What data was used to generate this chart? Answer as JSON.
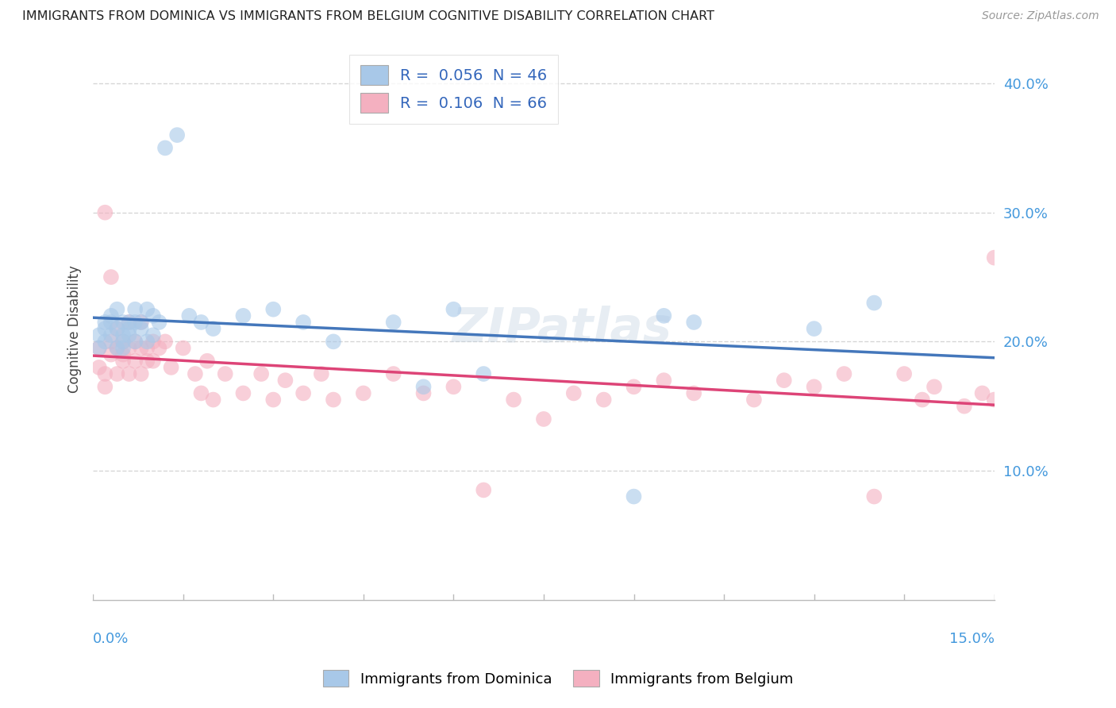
{
  "title": "IMMIGRANTS FROM DOMINICA VS IMMIGRANTS FROM BELGIUM COGNITIVE DISABILITY CORRELATION CHART",
  "source": "Source: ZipAtlas.com",
  "ylabel": "Cognitive Disability",
  "xlim": [
    0.0,
    0.15
  ],
  "ylim": [
    0.0,
    0.42
  ],
  "ytick_vals": [
    0.1,
    0.2,
    0.3,
    0.4
  ],
  "ytick_labels": [
    "10.0%",
    "20.0%",
    "30.0%",
    "40.0%"
  ],
  "r_dominica": 0.056,
  "n_dominica": 46,
  "r_belgium": 0.106,
  "n_belgium": 66,
  "color_dominica": "#a8c8e8",
  "color_belgium": "#f4b0c0",
  "line_color_dominica": "#4477bb",
  "line_color_belgium": "#dd4477",
  "background_color": "#ffffff",
  "grid_color": "#cccccc",
  "title_color": "#222222",
  "source_color": "#999999",
  "axis_label_color": "#4499dd",
  "dominica_x": [
    0.001,
    0.001,
    0.002,
    0.002,
    0.002,
    0.003,
    0.003,
    0.003,
    0.004,
    0.004,
    0.004,
    0.005,
    0.005,
    0.005,
    0.005,
    0.006,
    0.006,
    0.006,
    0.007,
    0.007,
    0.007,
    0.008,
    0.008,
    0.009,
    0.009,
    0.01,
    0.01,
    0.011,
    0.012,
    0.014,
    0.016,
    0.018,
    0.02,
    0.025,
    0.03,
    0.035,
    0.04,
    0.05,
    0.055,
    0.06,
    0.065,
    0.09,
    0.095,
    0.1,
    0.12,
    0.13
  ],
  "dominica_y": [
    0.195,
    0.205,
    0.2,
    0.21,
    0.215,
    0.205,
    0.215,
    0.22,
    0.195,
    0.21,
    0.225,
    0.2,
    0.215,
    0.205,
    0.195,
    0.205,
    0.215,
    0.21,
    0.2,
    0.215,
    0.225,
    0.215,
    0.21,
    0.2,
    0.225,
    0.22,
    0.205,
    0.215,
    0.35,
    0.36,
    0.22,
    0.215,
    0.21,
    0.22,
    0.225,
    0.215,
    0.2,
    0.215,
    0.165,
    0.225,
    0.175,
    0.08,
    0.22,
    0.215,
    0.21,
    0.23
  ],
  "belgium_x": [
    0.001,
    0.001,
    0.002,
    0.002,
    0.002,
    0.003,
    0.003,
    0.003,
    0.004,
    0.004,
    0.004,
    0.005,
    0.005,
    0.005,
    0.006,
    0.006,
    0.006,
    0.007,
    0.007,
    0.008,
    0.008,
    0.008,
    0.009,
    0.009,
    0.01,
    0.01,
    0.011,
    0.012,
    0.013,
    0.015,
    0.017,
    0.018,
    0.019,
    0.02,
    0.022,
    0.025,
    0.028,
    0.03,
    0.032,
    0.035,
    0.038,
    0.04,
    0.045,
    0.05,
    0.055,
    0.06,
    0.065,
    0.07,
    0.075,
    0.08,
    0.085,
    0.09,
    0.095,
    0.1,
    0.11,
    0.115,
    0.12,
    0.125,
    0.13,
    0.135,
    0.138,
    0.14,
    0.145,
    0.148,
    0.15,
    0.15
  ],
  "belgium_y": [
    0.18,
    0.195,
    0.3,
    0.175,
    0.165,
    0.2,
    0.25,
    0.19,
    0.21,
    0.195,
    0.175,
    0.185,
    0.2,
    0.19,
    0.215,
    0.175,
    0.195,
    0.185,
    0.2,
    0.175,
    0.195,
    0.215,
    0.185,
    0.195,
    0.2,
    0.185,
    0.195,
    0.2,
    0.18,
    0.195,
    0.175,
    0.16,
    0.185,
    0.155,
    0.175,
    0.16,
    0.175,
    0.155,
    0.17,
    0.16,
    0.175,
    0.155,
    0.16,
    0.175,
    0.16,
    0.165,
    0.085,
    0.155,
    0.14,
    0.16,
    0.155,
    0.165,
    0.17,
    0.16,
    0.155,
    0.17,
    0.165,
    0.175,
    0.08,
    0.175,
    0.155,
    0.165,
    0.15,
    0.16,
    0.265,
    0.155
  ]
}
